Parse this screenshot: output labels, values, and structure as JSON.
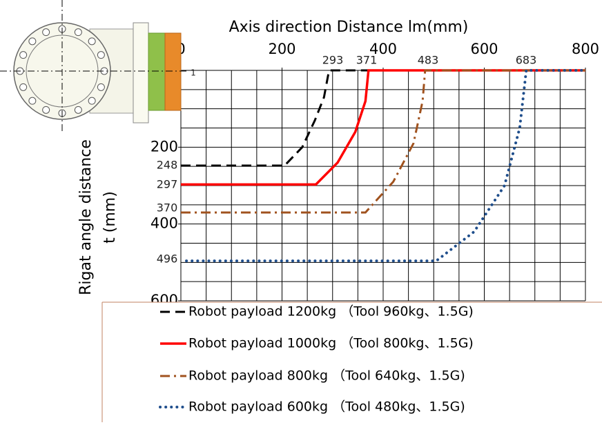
{
  "chart_data": {
    "type": "line",
    "xlabel": "Axis direction Distance lm(mm)",
    "ylabel": [
      "Rigat angle distance",
      "t (mm)"
    ],
    "xlim": [
      0,
      800
    ],
    "xticks": [
      0,
      200,
      400,
      600,
      800
    ],
    "ylim": [
      0,
      600
    ],
    "yticks": [
      200,
      400,
      600
    ],
    "y_inverted": true,
    "grid": true,
    "grid_step": 50,
    "annotations": [
      "293",
      "371",
      "483",
      "683",
      "1",
      "248",
      "297",
      "370",
      "496"
    ],
    "series": [
      {
        "name": "Robot payload 1200kg （Tool 960kg、1.5G)",
        "color": "#000000",
        "dash": "dashed",
        "x": [
          0,
          205,
          240,
          265,
          283,
          293,
          371
        ],
        "values": [
          248,
          248,
          200,
          130,
          70,
          0,
          0
        ]
      },
      {
        "name": "Robot payload 1000kg （Tool 800kg、1.5G)",
        "color": "#ff0000",
        "dash": "solid",
        "x": [
          0,
          267,
          310,
          345,
          365,
          371,
          800
        ],
        "values": [
          297,
          297,
          240,
          160,
          80,
          0,
          0
        ]
      },
      {
        "name": "Robot payload 800kg （Tool 640kg、1.5G)",
        "color": "#a0521e",
        "dash": "dashdot",
        "x": [
          0,
          365,
          420,
          460,
          478,
          483,
          800
        ],
        "values": [
          370,
          370,
          290,
          190,
          80,
          0,
          0
        ]
      },
      {
        "name": "Robot payload 600kg （Tool 480kg、1.5G)",
        "color": "#1f4e8c",
        "dash": "dotted",
        "x": [
          11,
          505,
          580,
          640,
          670,
          683,
          800
        ],
        "values": [
          496,
          496,
          420,
          300,
          150,
          0,
          0
        ]
      }
    ]
  }
}
